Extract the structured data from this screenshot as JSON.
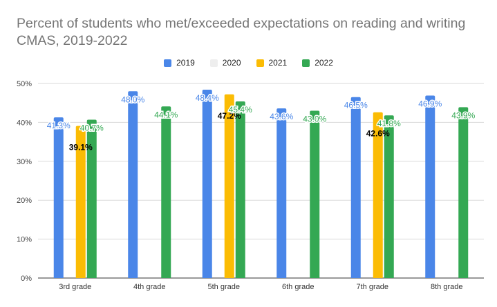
{
  "chart_data": {
    "type": "bar",
    "title": "Percent of students who met/exceeded expectations on reading and writing CMAS, 2019-2022",
    "categories": [
      "3rd grade",
      "4th grade",
      "5th grade",
      "6th grade",
      "7th grade",
      "8th grade"
    ],
    "series": [
      {
        "name": "2019",
        "color": "#4a86e8",
        "values": [
          41.3,
          48.0,
          48.4,
          43.6,
          46.5,
          46.9
        ],
        "labels": [
          "41.3%",
          "48.0%",
          "48.4%",
          "43.6%",
          "46.5%",
          "46.9%"
        ]
      },
      {
        "name": "2020",
        "color": "#eeeeee",
        "values": [
          null,
          null,
          null,
          null,
          null,
          null
        ],
        "labels": [
          "",
          "",
          "",
          "",
          "",
          ""
        ]
      },
      {
        "name": "2021",
        "color": "#fbbc04",
        "values": [
          39.1,
          null,
          47.2,
          null,
          42.6,
          null
        ],
        "labels": [
          "39.1%",
          "",
          "47.2%",
          "",
          "42.6%",
          ""
        ]
      },
      {
        "name": "2022",
        "color": "#34a853",
        "values": [
          40.7,
          44.1,
          45.4,
          43.0,
          41.8,
          43.9
        ],
        "labels": [
          "40.7%",
          "44.1%",
          "45.4%",
          "43.0%",
          "41.8%",
          "43.9%"
        ]
      }
    ],
    "y_ticks": [
      "0%",
      "10%",
      "20%",
      "30%",
      "40%",
      "50%"
    ],
    "ylim": [
      0,
      50
    ],
    "legend_position": "top",
    "grid": true
  }
}
